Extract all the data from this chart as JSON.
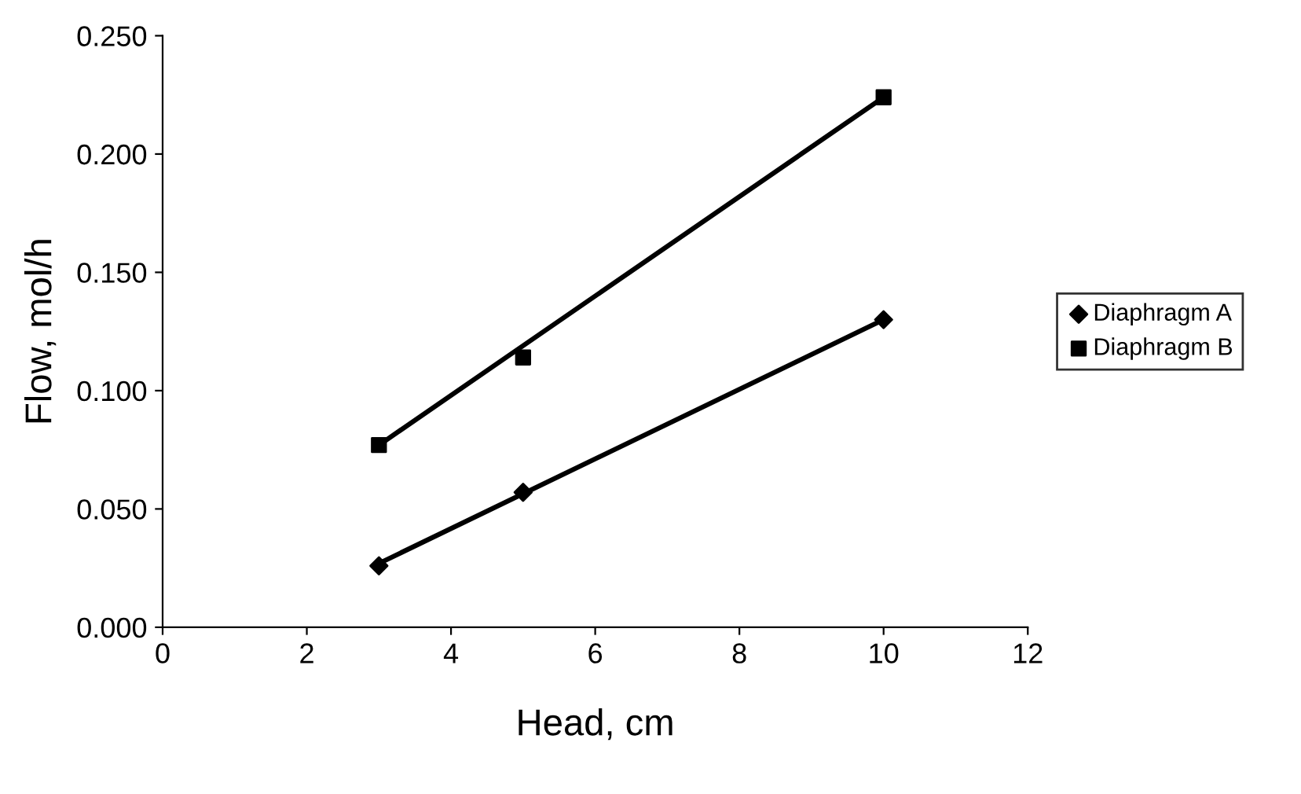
{
  "chart_data": {
    "type": "scatter",
    "xlabel": "Head, cm",
    "ylabel": "Flow, mol/h",
    "xlim": [
      0,
      12
    ],
    "xticks": [
      0,
      2,
      4,
      6,
      8,
      10,
      12
    ],
    "ylim": [
      0,
      0.25
    ],
    "yticks": [
      {
        "value": 0,
        "label": "0.000"
      },
      {
        "value": 0.05,
        "label": "0.050"
      },
      {
        "value": 0.1,
        "label": "0.100"
      },
      {
        "value": 0.15,
        "label": "0.150"
      },
      {
        "value": 0.2,
        "label": "0.200"
      },
      {
        "value": 0.25,
        "label": "0.250"
      }
    ],
    "series": [
      {
        "name": "Diaphragm A",
        "marker": "diamond",
        "color": "#000000",
        "x": [
          3,
          5,
          10
        ],
        "values": [
          0.026,
          0.057,
          0.13
        ]
      },
      {
        "name": "Diaphragm B",
        "marker": "square",
        "color": "#000000",
        "x": [
          3,
          5,
          10
        ],
        "values": [
          0.077,
          0.114,
          0.224
        ]
      },
      {
        "type": "line",
        "marker": "none",
        "color": "#000000",
        "x": [
          3,
          10
        ],
        "values": [
          0.027,
          0.13
        ]
      },
      {
        "type": "line",
        "marker": "none",
        "color": "#000000",
        "x": [
          3,
          10
        ],
        "values": [
          0.077,
          0.224
        ]
      }
    ],
    "grid": false,
    "legend": "right"
  }
}
